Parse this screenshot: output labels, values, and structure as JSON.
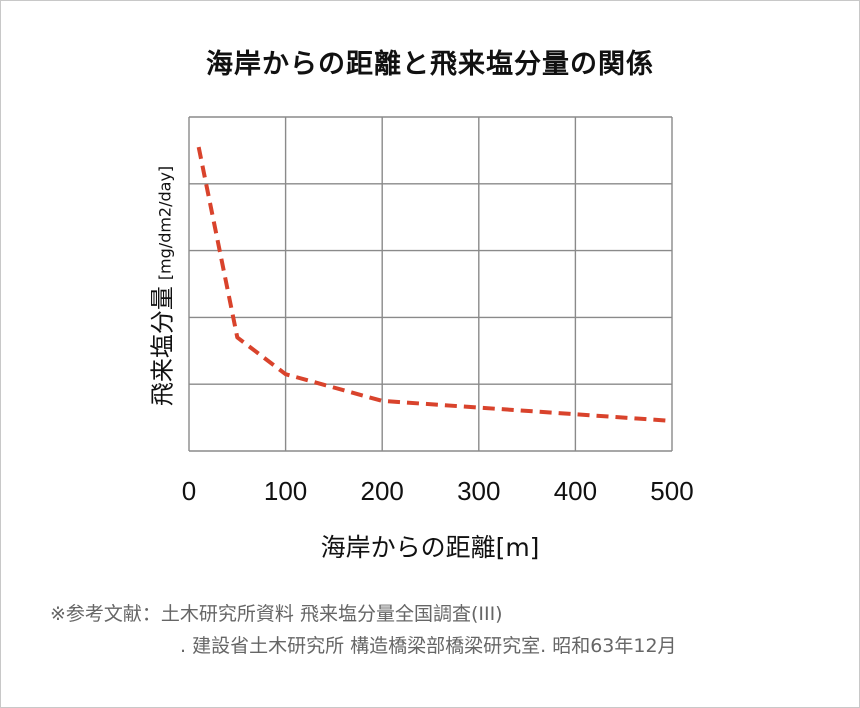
{
  "chart_data": {
    "type": "line",
    "title": "海岸からの距離と飛来塩分量の関係",
    "xlabel": "海岸からの距離[m]",
    "ylabel": "飛来塩分量",
    "ylabel_unit": "[mg/dm2/day]",
    "xlim": [
      0,
      500
    ],
    "ylim": [
      0,
      5
    ],
    "xticks": [
      "0",
      "100",
      "200",
      "300",
      "400",
      "500"
    ],
    "grid": true,
    "series": [
      {
        "color": "#d9432c",
        "style": "dashed",
        "x": [
          10,
          50,
          100,
          200,
          300,
          400,
          500
        ],
        "y": [
          4.55,
          1.7,
          1.15,
          0.75,
          0.65,
          0.55,
          0.45
        ]
      }
    ]
  },
  "source": {
    "line1": "※参考文献：土木研究所資料 飛来塩分量全国調査(III)",
    "line2": ". 建設省土木研究所 構造橋梁部橋梁研究室. 昭和63年12月"
  }
}
